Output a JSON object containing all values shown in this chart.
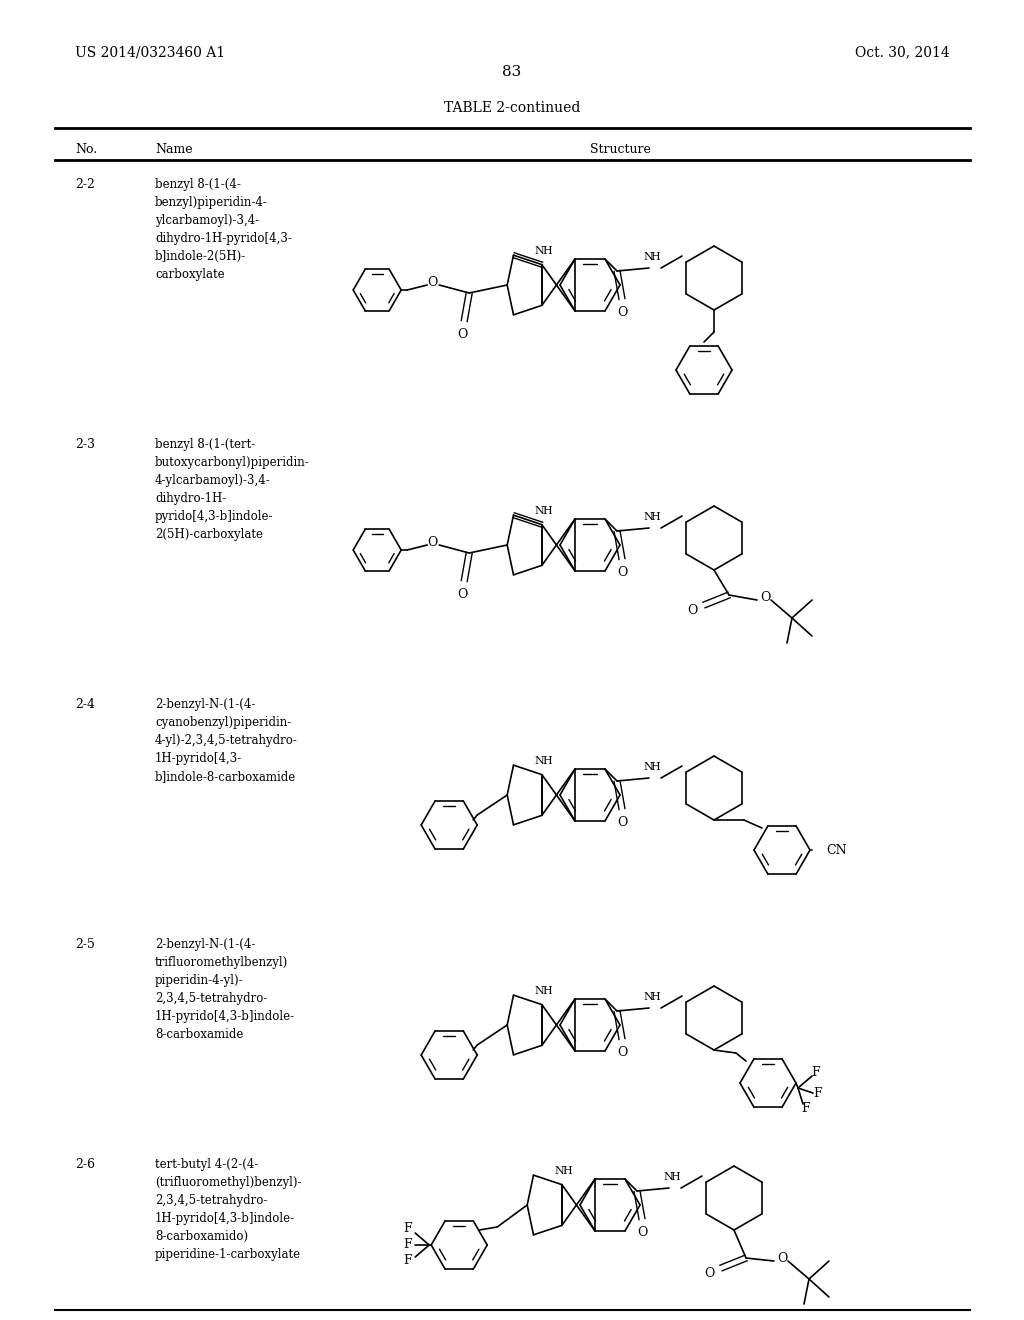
{
  "patent_number": "US 2014/0323460 A1",
  "date": "Oct. 30, 2014",
  "page_number": "83",
  "table_title": "TABLE 2-continued",
  "background_color": "#ffffff",
  "text_color": "#000000",
  "rows": [
    {
      "no": "2-2",
      "name": "benzyl 8-(1-(4-\nbenzyl)piperidin-4-\nylcarbamoyl)-3,4-\ndihydro-1H-pyrido[4,3-\nb]indole-2(5H)-\ncarboxylate"
    },
    {
      "no": "2-3",
      "name": "benzyl 8-(1-(tert-\nbutoxycarbonyl)piperidin-\n4-ylcarbamoyl)-3,4-\ndihydro-1H-\npyrido[4,3-b]indole-\n2(5H)-carboxylate"
    },
    {
      "no": "2-4",
      "name": "2-benzyl-N-(1-(4-\ncyanobenzyl)piperidin-\n4-yl)-2,3,4,5-tetrahydro-\n1H-pyrido[4,3-\nb]indole-8-carboxamide"
    },
    {
      "no": "2-5",
      "name": "2-benzyl-N-(1-(4-\ntrifluoromethylbenzyl)\npiperidin-4-yl)-\n2,3,4,5-tetrahydro-\n1H-pyrido[4,3-b]indole-\n8-carboxamide"
    },
    {
      "no": "2-6",
      "name": "tert-butyl 4-(2-(4-\n(trifluoromethyl)benzyl)-\n2,3,4,5-tetrahydro-\n1H-pyrido[4,3-b]indole-\n8-carboxamido)\npiperidine-1-carboxylate"
    }
  ]
}
